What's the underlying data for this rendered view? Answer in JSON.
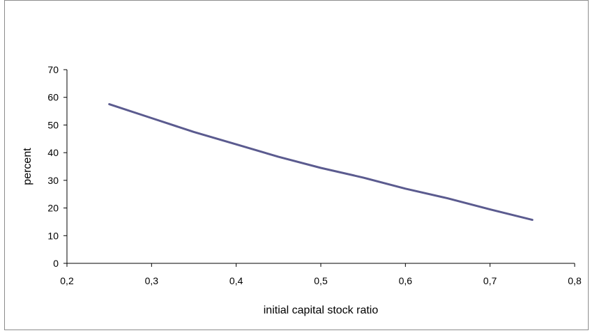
{
  "chart_data": {
    "type": "line",
    "xlabel": "initial capital stock ratio",
    "ylabel": "percent",
    "xlim": [
      0.2,
      0.8
    ],
    "ylim": [
      0,
      70
    ],
    "x_ticks": [
      "0,2",
      "0,3",
      "0,4",
      "0,5",
      "0,6",
      "0,7",
      "0,8"
    ],
    "y_ticks": [
      "0",
      "10",
      "20",
      "30",
      "40",
      "50",
      "60",
      "70"
    ],
    "grid": false,
    "legend": "none",
    "series": [
      {
        "color": "#5b5b8f",
        "x": [
          0.25,
          0.3,
          0.35,
          0.4,
          0.45,
          0.5,
          0.55,
          0.6,
          0.65,
          0.7,
          0.75
        ],
        "y": [
          57.5,
          52.5,
          47.5,
          43.0,
          38.5,
          34.5,
          31.0,
          27.0,
          23.5,
          19.5,
          15.7
        ]
      }
    ]
  }
}
